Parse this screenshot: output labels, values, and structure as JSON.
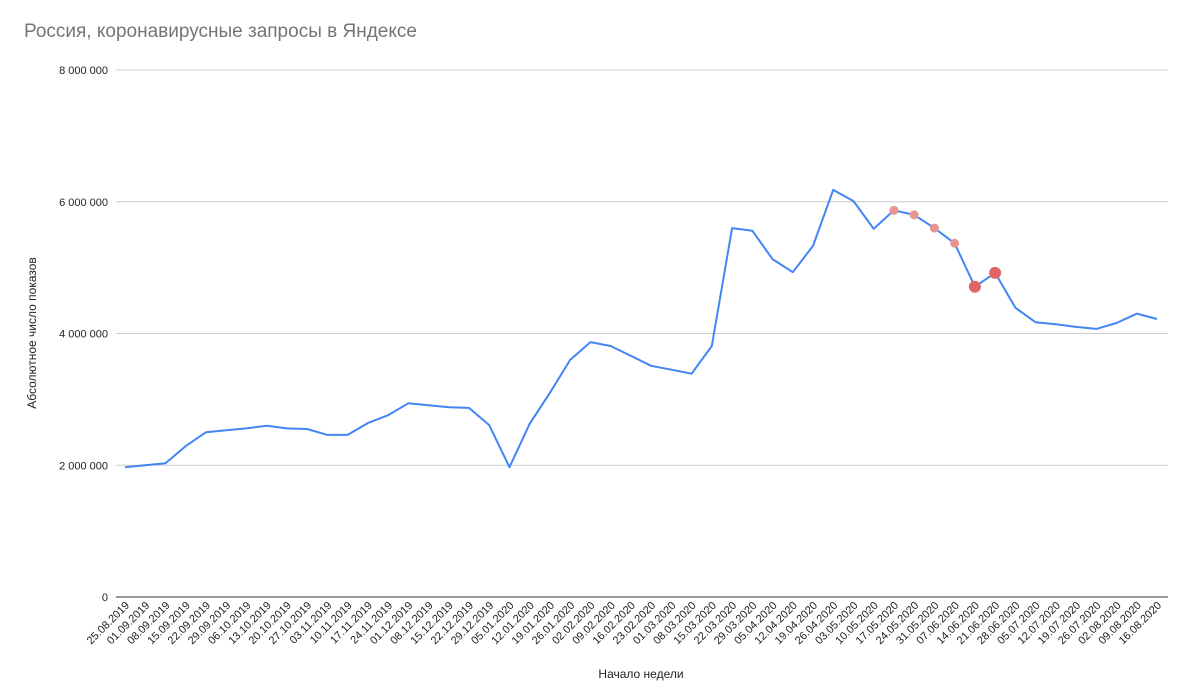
{
  "chart_data": {
    "type": "line",
    "title": "Россия, коронавирусные запросы в Яндексе",
    "xlabel": "Начало недели",
    "ylabel": "Абсолютное число показов",
    "ylim": [
      0,
      8000000
    ],
    "yticks": [
      0,
      2000000,
      4000000,
      6000000,
      8000000
    ],
    "ytick_labels": [
      "0",
      "2 000 000",
      "4 000 000",
      "6 000 000",
      "8 000 000"
    ],
    "grid": true,
    "line_color": "#4285f4",
    "x": [
      "25.08.2019",
      "01.09.2019",
      "08.09.2019",
      "15.09.2019",
      "22.09.2019",
      "29.09.2019",
      "06.10.2019",
      "13.10.2019",
      "20.10.2019",
      "27.10.2019",
      "03.11.2019",
      "10.11.2019",
      "17.11.2019",
      "24.11.2019",
      "01.12.2019",
      "08.12.2019",
      "15.12.2019",
      "22.12.2019",
      "29.12.2019",
      "05.01.2020",
      "12.01.2020",
      "19.01.2020",
      "26.01.2020",
      "02.02.2020",
      "09.02.2020",
      "16.02.2020",
      "23.02.2020",
      "01.03.2020",
      "08.03.2020",
      "15.03.2020",
      "22.03.2020",
      "29.03.2020",
      "05.04.2020",
      "12.04.2020",
      "19.04.2020",
      "26.04.2020",
      "03.05.2020",
      "10.05.2020",
      "17.05.2020",
      "24.05.2020",
      "31.05.2020",
      "07.06.2020",
      "14.06.2020",
      "21.06.2020",
      "28.06.2020",
      "05.07.2020",
      "12.07.2020",
      "19.07.2020",
      "26.07.2020",
      "02.08.2020",
      "09.08.2020",
      "16.08.2020"
    ],
    "series": [
      {
        "values": [
          1970000,
          2000000,
          2030000,
          2290000,
          2500000,
          2530000,
          2560000,
          2600000,
          2560000,
          2550000,
          2460000,
          2460000,
          2640000,
          2760000,
          2940000,
          2910000,
          2880000,
          2870000,
          2610000,
          1970000,
          2630000,
          3100000,
          3600000,
          3870000,
          3810000,
          3660000,
          3510000,
          3450000,
          3390000,
          3810000,
          5600000,
          5560000,
          5130000,
          4930000,
          5330000,
          6180000,
          6010000,
          5590000,
          5870000,
          5800000,
          5600000,
          5370000,
          4710000,
          4920000,
          4390000,
          4170000,
          4140000,
          4100000,
          4070000,
          4160000,
          4300000,
          4220000
        ]
      }
    ],
    "highlights": [
      {
        "x": "17.05.2020",
        "color": "#e8948f",
        "size": "small"
      },
      {
        "x": "24.05.2020",
        "color": "#e8948f",
        "size": "small"
      },
      {
        "x": "31.05.2020",
        "color": "#e8948f",
        "size": "small"
      },
      {
        "x": "07.06.2020",
        "color": "#e8948f",
        "size": "small"
      },
      {
        "x": "14.06.2020",
        "color": "#e06666",
        "size": "large"
      },
      {
        "x": "21.06.2020",
        "color": "#e06666",
        "size": "large"
      }
    ]
  }
}
